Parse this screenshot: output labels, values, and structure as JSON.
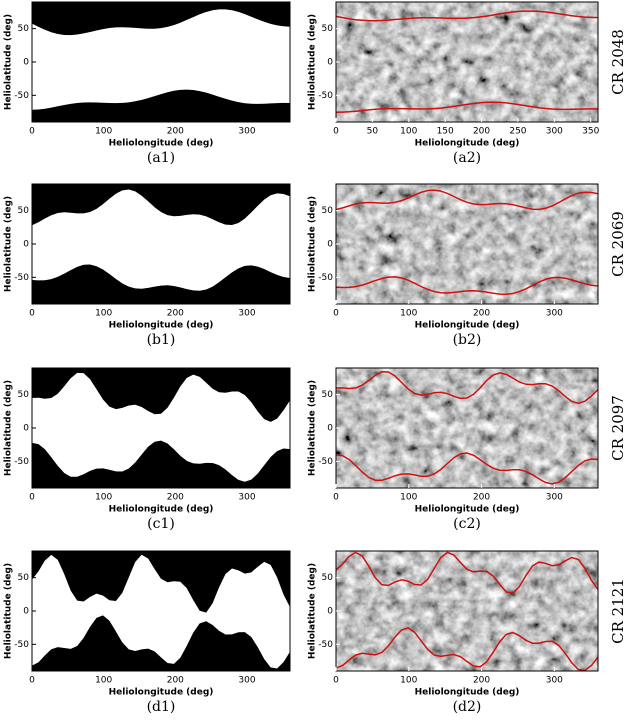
{
  "panels": [
    {
      "label": "(a1)",
      "xlabel": "Heliolongitude (deg)",
      "ylabel": "Heliolatitude (deg)",
      "xlim": [
        0,
        360
      ],
      "ylim": [
        -90,
        90
      ],
      "xticks": [
        0,
        100,
        200,
        300
      ],
      "yticks": [
        -50,
        0,
        50
      ]
    },
    {
      "label": "(a2)",
      "xlabel": "Heliolongitude (deg)",
      "ylabel": "Heliolatitude (deg)",
      "xlim": [
        0,
        360
      ],
      "ylim": [
        -90,
        90
      ],
      "xticks": [
        0,
        50,
        100,
        150,
        200,
        250,
        300,
        350
      ],
      "yticks": [
        -50,
        0,
        50
      ]
    },
    {
      "label": "(b1)",
      "xlabel": "Heliolongitude (deg)",
      "ylabel": "Heliolatitude (deg)",
      "xlim": [
        0,
        360
      ],
      "ylim": [
        -90,
        90
      ],
      "xticks": [
        0,
        100,
        200,
        300
      ],
      "yticks": [
        -50,
        0,
        50
      ]
    },
    {
      "label": "(b2)",
      "xlabel": "Heliolongitude (deg)",
      "ylabel": "Heliolatitude (deg)",
      "xlim": [
        0,
        360
      ],
      "ylim": [
        -90,
        90
      ],
      "xticks": [
        0,
        100,
        200,
        300
      ],
      "yticks": [
        -50,
        0,
        50
      ]
    },
    {
      "label": "(c1)",
      "xlabel": "Heliolongitude (deg)",
      "ylabel": "Heliolatitude (deg)",
      "xlim": [
        0,
        360
      ],
      "ylim": [
        -90,
        90
      ],
      "xticks": [
        0,
        100,
        200,
        300
      ],
      "yticks": [
        -50,
        0,
        50
      ]
    },
    {
      "label": "(c2)",
      "xlabel": "Heliolongitude (deg)",
      "ylabel": "Heliolatitude (deg)",
      "xlim": [
        0,
        360
      ],
      "ylim": [
        -90,
        90
      ],
      "xticks": [
        0,
        100,
        200,
        300
      ],
      "yticks": [
        -50,
        0,
        50
      ]
    },
    {
      "label": "(d1)",
      "xlabel": "Heliolongitude (deg)",
      "ylabel": "Heliolatitude (deg)",
      "xlim": [
        0,
        360
      ],
      "ylim": [
        -90,
        90
      ],
      "xticks": [
        0,
        100,
        200,
        300
      ],
      "yticks": [
        -50,
        0,
        50
      ]
    },
    {
      "label": "(d2)",
      "xlabel": "Heliolongitude (deg)",
      "ylabel": "Heliolatitude (deg)",
      "xlim": [
        0,
        360
      ],
      "ylim": [
        -90,
        90
      ],
      "xticks": [
        0,
        100,
        200,
        300
      ],
      "yticks": [
        -50,
        0,
        50
      ]
    }
  ],
  "rows": [
    {
      "label": "CR 2048"
    },
    {
      "label": "CR 2069"
    },
    {
      "label": "CR 2097"
    },
    {
      "label": "CR 2121"
    }
  ]
}
